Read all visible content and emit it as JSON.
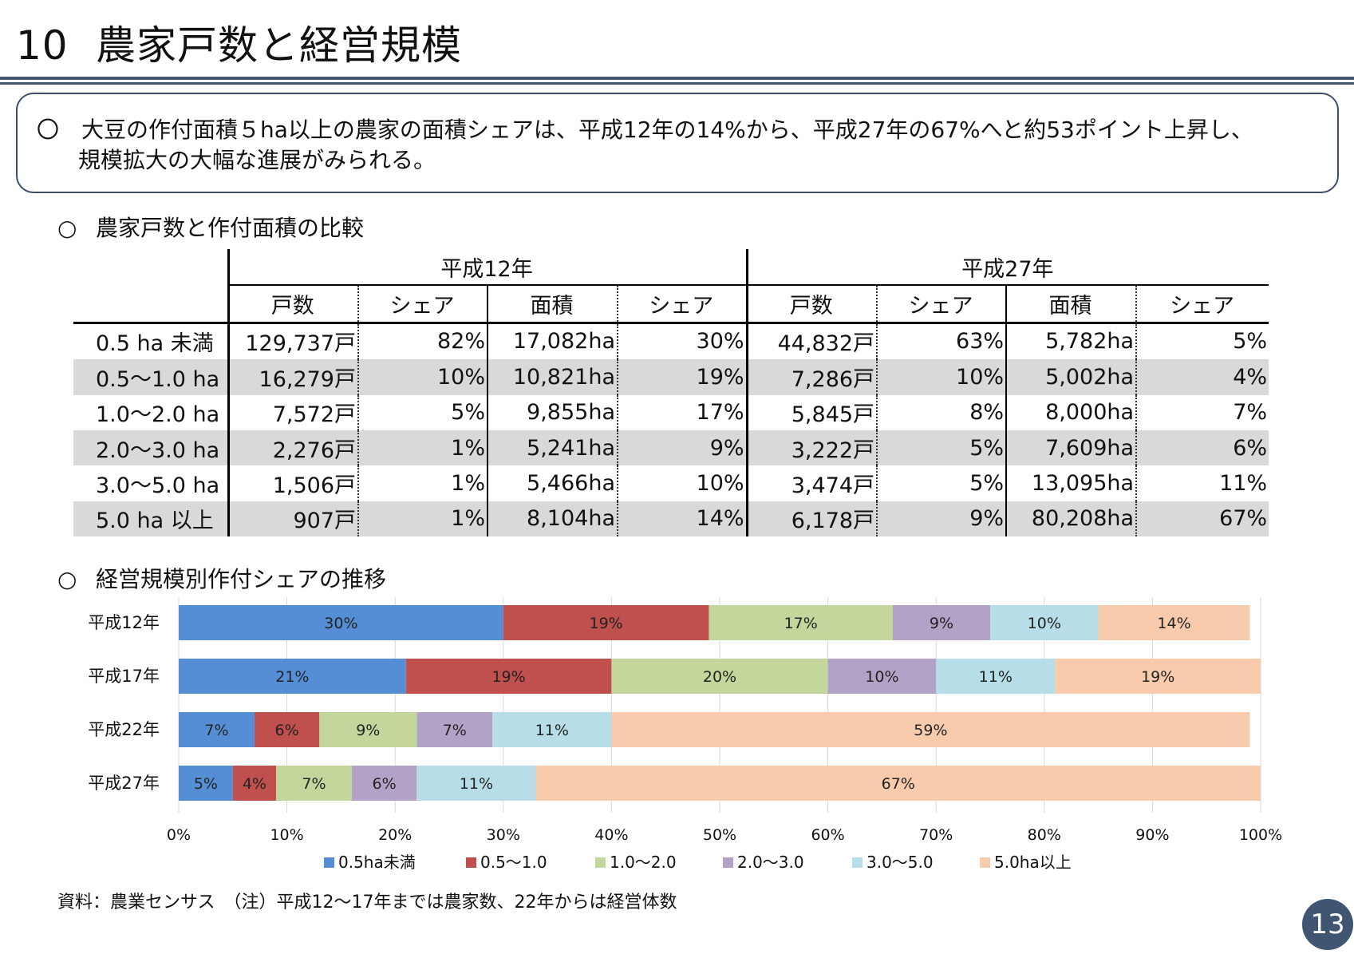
{
  "page": {
    "section_number": "10",
    "title": "農家戸数と経営規模",
    "summary_bullet": "〇",
    "summary_line1": "大豆の作付面積５ha以上の農家の面積シェアは、平成12年の14%から、平成27年の67%へと約53ポイント上昇し、",
    "summary_line2": "規模拡大の大幅な進展がみられる。",
    "page_number": "13",
    "source_note": "資料：農業センサス　（注）平成12～17年までは農家数、22年からは経営体数"
  },
  "table_section": {
    "bullet": "○",
    "heading": "農家戸数と作付面積の比較",
    "groups": [
      "平成12年",
      "平成27年"
    ],
    "columns": [
      "戸数",
      "シェア",
      "面積",
      "シェア",
      "戸数",
      "シェア",
      "面積",
      "シェア"
    ],
    "rows": [
      {
        "label": "0.5 ha 未満",
        "cells": [
          "129,737戸",
          "82%",
          "17,082ha",
          "30%",
          "44,832戸",
          "63%",
          "5,782ha",
          "5%"
        ]
      },
      {
        "label": "0.5～1.0 ha",
        "cells": [
          "16,279戸",
          "10%",
          "10,821ha",
          "19%",
          "7,286戸",
          "10%",
          "5,002ha",
          "4%"
        ]
      },
      {
        "label": "1.0～2.0 ha",
        "cells": [
          "7,572戸",
          "5%",
          "9,855ha",
          "17%",
          "5,845戸",
          "8%",
          "8,000ha",
          "7%"
        ]
      },
      {
        "label": "2.0～3.0 ha",
        "cells": [
          "2,276戸",
          "1%",
          "5,241ha",
          "9%",
          "3,222戸",
          "5%",
          "7,609ha",
          "6%"
        ]
      },
      {
        "label": "3.0～5.0 ha",
        "cells": [
          "1,506戸",
          "1%",
          "5,466ha",
          "10%",
          "3,474戸",
          "5%",
          "13,095ha",
          "11%"
        ]
      },
      {
        "label": "5.0 ha 以上",
        "cells": [
          "907戸",
          "1%",
          "8,104ha",
          "14%",
          "6,178戸",
          "9%",
          "80,208ha",
          "67%"
        ]
      }
    ]
  },
  "chart_section": {
    "bullet": "○",
    "heading": "経営規模別作付シェアの推移"
  },
  "chart_data": {
    "type": "bar",
    "orientation": "horizontal",
    "stacked": true,
    "categories": [
      "平成12年",
      "平成17年",
      "平成22年",
      "平成27年"
    ],
    "series": [
      {
        "name": "0.5ha未満",
        "color": "#558ed5",
        "values": [
          30,
          21,
          7,
          5
        ]
      },
      {
        "name": "0.5～1.0",
        "color": "#c0504d",
        "values": [
          19,
          19,
          6,
          4
        ]
      },
      {
        "name": "1.0～2.0",
        "color": "#c3d69b",
        "values": [
          17,
          20,
          9,
          7
        ]
      },
      {
        "name": "2.0～3.0",
        "color": "#b3a2c7",
        "values": [
          9,
          10,
          7,
          6
        ]
      },
      {
        "name": "3.0～5.0",
        "color": "#b7dee8",
        "values": [
          10,
          11,
          11,
          11
        ]
      },
      {
        "name": "5.0ha以上",
        "color": "#f8cbad",
        "values": [
          14,
          19,
          59,
          67
        ]
      }
    ],
    "data_labels": [
      [
        "30%",
        "21%",
        "7%",
        "5%"
      ],
      [
        "19%",
        "19%",
        "6%",
        "4%"
      ],
      [
        "17%",
        "20%",
        "9%",
        "7%"
      ],
      [
        "9%",
        "10%",
        "7%",
        "6%"
      ],
      [
        "10%",
        "11%",
        "11%",
        "11%"
      ],
      [
        "14%",
        "19%",
        "59%",
        "67%"
      ]
    ],
    "xlim": [
      0,
      100
    ],
    "xticks": [
      "0%",
      "10%",
      "20%",
      "30%",
      "40%",
      "50%",
      "60%",
      "70%",
      "80%",
      "90%",
      "100%"
    ],
    "grid": true,
    "legend": "bottom"
  }
}
